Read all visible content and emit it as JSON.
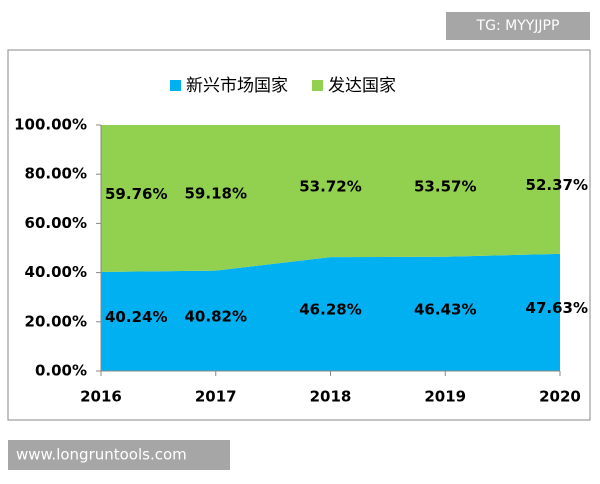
{
  "chart_data": {
    "type": "stacked_area",
    "categories": [
      "2016",
      "2017",
      "2018",
      "2019",
      "2020"
    ],
    "series": [
      {
        "name": "新兴市场国家",
        "color": "#00b0f0",
        "values": [
          40.24,
          40.82,
          46.28,
          46.43,
          47.63
        ],
        "value_labels": [
          "40.24%",
          "40.82%",
          "46.28%",
          "46.43%",
          "47.63%"
        ]
      },
      {
        "name": "发达国家",
        "color": "#92d050",
        "values": [
          59.76,
          59.18,
          53.72,
          53.57,
          52.37
        ],
        "value_labels": [
          "59.76%",
          "59.18%",
          "53.72%",
          "53.57%",
          "52.37%"
        ]
      }
    ],
    "ylim": [
      0,
      100
    ],
    "yticks": [
      {
        "value": 0,
        "label": "0.00%"
      },
      {
        "value": 20,
        "label": "20.00%"
      },
      {
        "value": 40,
        "label": "40.00%"
      },
      {
        "value": 60,
        "label": "60.00%"
      },
      {
        "value": 80,
        "label": "80.00%"
      },
      {
        "value": 100,
        "label": "100.00%"
      }
    ],
    "legend": "top"
  },
  "watermarks": {
    "top": "TG: MYYJJPP",
    "bottom": "www.longruntools.com"
  }
}
